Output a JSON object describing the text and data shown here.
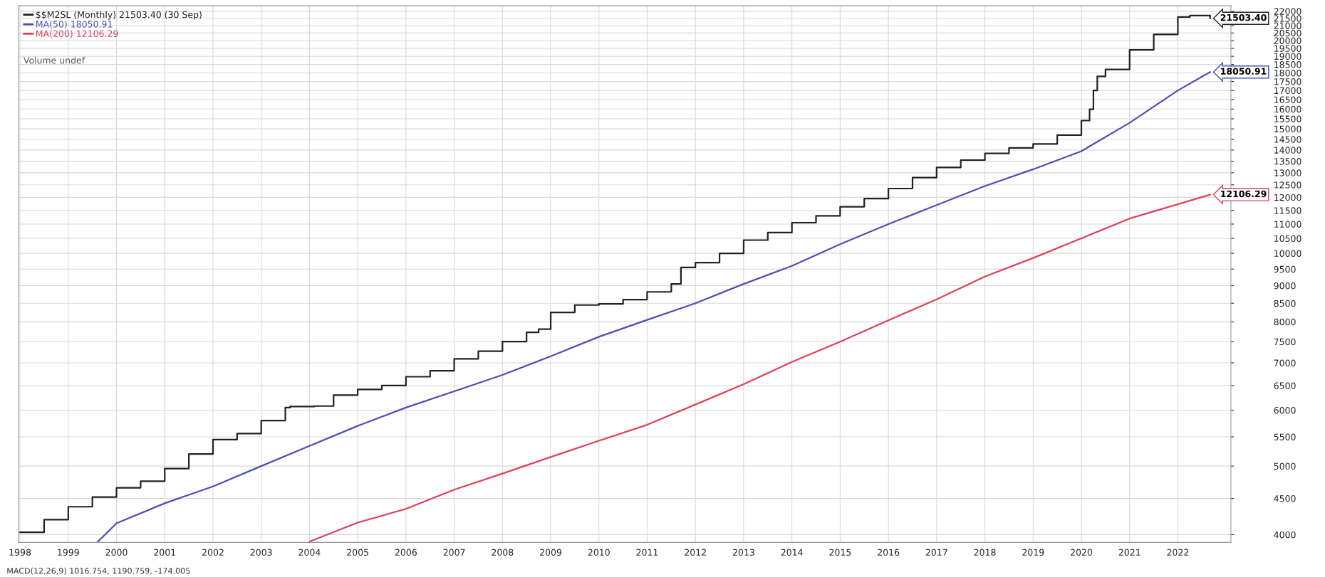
{
  "chart_data": {
    "type": "line",
    "series": [
      {
        "name": "$$M2SL (Monthly) 21503.40 (30 Sep)",
        "type": "step",
        "color": "#222222",
        "x": [
          1998.0,
          1998.5,
          1999.0,
          1999.5,
          2000.0,
          2000.5,
          2001.0,
          2001.5,
          2002.0,
          2002.5,
          2003.0,
          2003.5,
          2003.6,
          2004.1,
          2004.5,
          2005.0,
          2005.5,
          2006.0,
          2006.5,
          2007.0,
          2007.5,
          2008.0,
          2008.5,
          2008.75,
          2009.0,
          2009.5,
          2010.0,
          2010.5,
          2011.0,
          2011.5,
          2011.7,
          2012.0,
          2012.5,
          2013.0,
          2013.5,
          2014.0,
          2014.5,
          2015.0,
          2015.5,
          2016.0,
          2016.5,
          2017.0,
          2017.5,
          2018.0,
          2018.5,
          2019.0,
          2019.5,
          2020.0,
          2020.17,
          2020.25,
          2020.33,
          2020.5,
          2021.0,
          2021.5,
          2022.0,
          2022.25,
          2022.67
        ],
        "values": [
          4030,
          4200,
          4380,
          4520,
          4660,
          4760,
          4960,
          5200,
          5450,
          5560,
          5800,
          6050,
          6070,
          6080,
          6300,
          6420,
          6500,
          6690,
          6820,
          7090,
          7270,
          7500,
          7730,
          7810,
          8250,
          8450,
          8480,
          8600,
          8820,
          9050,
          9550,
          9700,
          10000,
          10440,
          10700,
          11050,
          11300,
          11640,
          11950,
          12350,
          12800,
          13230,
          13550,
          13850,
          14100,
          14280,
          14700,
          15410,
          15990,
          17000,
          17800,
          18200,
          19400,
          20400,
          21600,
          21700,
          21503.4
        ],
        "value_labels": [
          null,
          null,
          null,
          null,
          null,
          null,
          null,
          null,
          null,
          null,
          null,
          null,
          null,
          null,
          null,
          null,
          null,
          null,
          null,
          null,
          null,
          null,
          null,
          null,
          null,
          null,
          null,
          null,
          null,
          null,
          null,
          null,
          null,
          null,
          null,
          null,
          null,
          null,
          null,
          null,
          null,
          null,
          null,
          null,
          null,
          null,
          null,
          null,
          null,
          null,
          null,
          null,
          null,
          null,
          null,
          null,
          "21503.40"
        ]
      },
      {
        "name": "MA(50) 18050.91",
        "color": "#4b4fb5",
        "x": [
          1999.6,
          2000,
          2001,
          2002,
          2003,
          2004,
          2005,
          2006,
          2007,
          2008,
          2009,
          2010,
          2011,
          2012,
          2013,
          2014,
          2015,
          2016,
          2017,
          2018,
          2019,
          2020,
          2021,
          2022,
          2022.67
        ],
        "values": [
          3900,
          4150,
          4430,
          4680,
          5000,
          5340,
          5700,
          6050,
          6380,
          6730,
          7150,
          7620,
          8050,
          8500,
          9050,
          9600,
          10300,
          11000,
          11700,
          12450,
          13150,
          13950,
          15300,
          17000,
          18050.91
        ],
        "value_labels": [
          null,
          null,
          null,
          null,
          null,
          null,
          null,
          null,
          null,
          null,
          null,
          null,
          null,
          null,
          null,
          null,
          null,
          null,
          null,
          null,
          null,
          null,
          null,
          null,
          "18050.91"
        ]
      },
      {
        "name": "MA(200) 12106.29",
        "color": "#e0405a",
        "x": [
          2004.0,
          2005,
          2006,
          2007,
          2008,
          2009,
          2010,
          2011,
          2012,
          2013,
          2014,
          2015,
          2016,
          2017,
          2018,
          2019,
          2020,
          2021,
          2022.67
        ],
        "values": [
          3910,
          4160,
          4350,
          4630,
          4880,
          5150,
          5430,
          5720,
          6110,
          6530,
          7020,
          7500,
          8040,
          8610,
          9270,
          9850,
          10500,
          11200,
          12106.29
        ],
        "value_labels": [
          null,
          null,
          null,
          null,
          null,
          null,
          null,
          null,
          null,
          null,
          null,
          null,
          null,
          null,
          null,
          null,
          null,
          null,
          "12106.29"
        ]
      }
    ],
    "annotations": [
      "Volume undef",
      "MACD(12,26,9) 1016.754, 1190.759, -174.005"
    ],
    "log": true,
    "ylim": [
      3900,
      22400
    ],
    "yticks": [
      4000,
      4500,
      5000,
      5500,
      6000,
      6500,
      7000,
      7500,
      8000,
      8500,
      9000,
      9500,
      10000,
      10500,
      11000,
      11500,
      12000,
      12500,
      13000,
      13500,
      14000,
      14500,
      15000,
      15500,
      16000,
      16500,
      17000,
      17500,
      18000,
      18500,
      19000,
      19500,
      20000,
      20500,
      21000,
      21500,
      22000
    ],
    "xlim": [
      1997.97,
      2023.1
    ],
    "xticks": [
      1998,
      1999,
      2000,
      2001,
      2002,
      2003,
      2004,
      2005,
      2006,
      2007,
      2008,
      2009,
      2010,
      2011,
      2012,
      2013,
      2014,
      2015,
      2016,
      2017,
      2018,
      2019,
      2020,
      2021,
      2022
    ],
    "grid": true,
    "legend": "top left"
  }
}
